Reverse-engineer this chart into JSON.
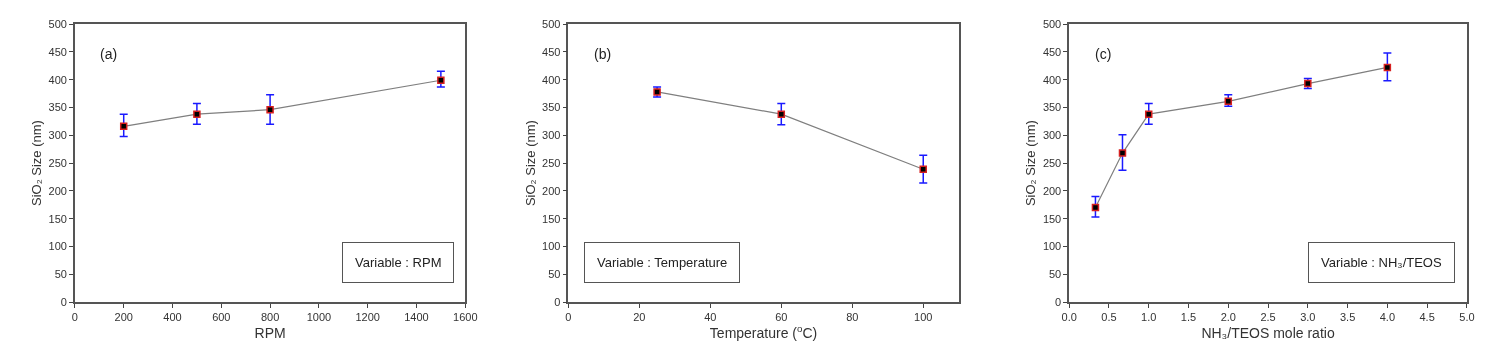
{
  "chart_data": [
    {
      "type": "line",
      "xlabel": "RPM",
      "ylabel": "SiO₂ Size (nm)",
      "annotations": [
        "(a)",
        "Variable : RPM"
      ],
      "x": [
        200,
        500,
        800,
        1500
      ],
      "marker": "square",
      "xlim": [
        0,
        1600
      ],
      "xticks": [
        0,
        200,
        400,
        600,
        800,
        1000,
        1200,
        1400,
        1600
      ],
      "ylim": [
        0,
        500
      ],
      "yticks": [
        0,
        50,
        100,
        150,
        200,
        250,
        300,
        350,
        400,
        450,
        500
      ],
      "series": [
        {
          "color": "#000000",
          "values": [
            316,
            338,
            346,
            399
          ],
          "errors": [
            [
              298,
              338
            ],
            [
              320,
              357
            ],
            [
              320,
              373
            ],
            [
              387,
              415
            ]
          ]
        }
      ]
    },
    {
      "type": "line",
      "xlabel": "Temperature ($^{o}$C)",
      "ylabel": "SiO₂ Size (nm)",
      "annotations": [
        "(b)",
        "Variable : Temperature"
      ],
      "x": [
        25,
        60,
        100
      ],
      "marker": "square",
      "xlim": [
        0,
        110
      ],
      "xticks": [
        0,
        20,
        40,
        60,
        80,
        100
      ],
      "ylim": [
        0,
        500
      ],
      "yticks": [
        0,
        50,
        100,
        150,
        200,
        250,
        300,
        350,
        400,
        450,
        500
      ],
      "series": [
        {
          "color": "#000000",
          "values": [
            378,
            338,
            239
          ],
          "errors": [
            [
              369,
              387
            ],
            [
              319,
              357
            ],
            [
              214,
              264
            ]
          ]
        }
      ]
    },
    {
      "type": "line",
      "xlabel": "NH₃/TEOS mole ratio",
      "ylabel": "SiO₂ Size (nm)",
      "annotations": [
        "(c)",
        "Variable : NH₃/TEOS"
      ],
      "x": [
        0.33,
        0.67,
        1,
        2,
        3,
        4
      ],
      "marker": "square",
      "xlim": [
        0,
        5
      ],
      "xticks": [
        {
          "value": 0,
          "label": "0.0"
        },
        0.5,
        {
          "value": 1,
          "label": "1.0"
        },
        1.5,
        {
          "value": 2,
          "label": "2.0"
        },
        2.5,
        {
          "value": 3,
          "label": "3.0"
        },
        3.5,
        {
          "value": 4,
          "label": "4.0"
        },
        4.5,
        {
          "value": 5,
          "label": "5.0"
        }
      ],
      "ylim": [
        0,
        500
      ],
      "yticks": [
        0,
        50,
        100,
        150,
        200,
        250,
        300,
        350,
        400,
        450,
        500
      ],
      "series": [
        {
          "color": "#000000",
          "values": [
            170,
            268,
            338,
            361,
            393,
            422
          ],
          "errors": [
            [
              153,
              190
            ],
            [
              237,
              301
            ],
            [
              320,
              357
            ],
            [
              352,
              373
            ],
            [
              384,
              402
            ],
            [
              398,
              448
            ]
          ]
        }
      ]
    }
  ]
}
